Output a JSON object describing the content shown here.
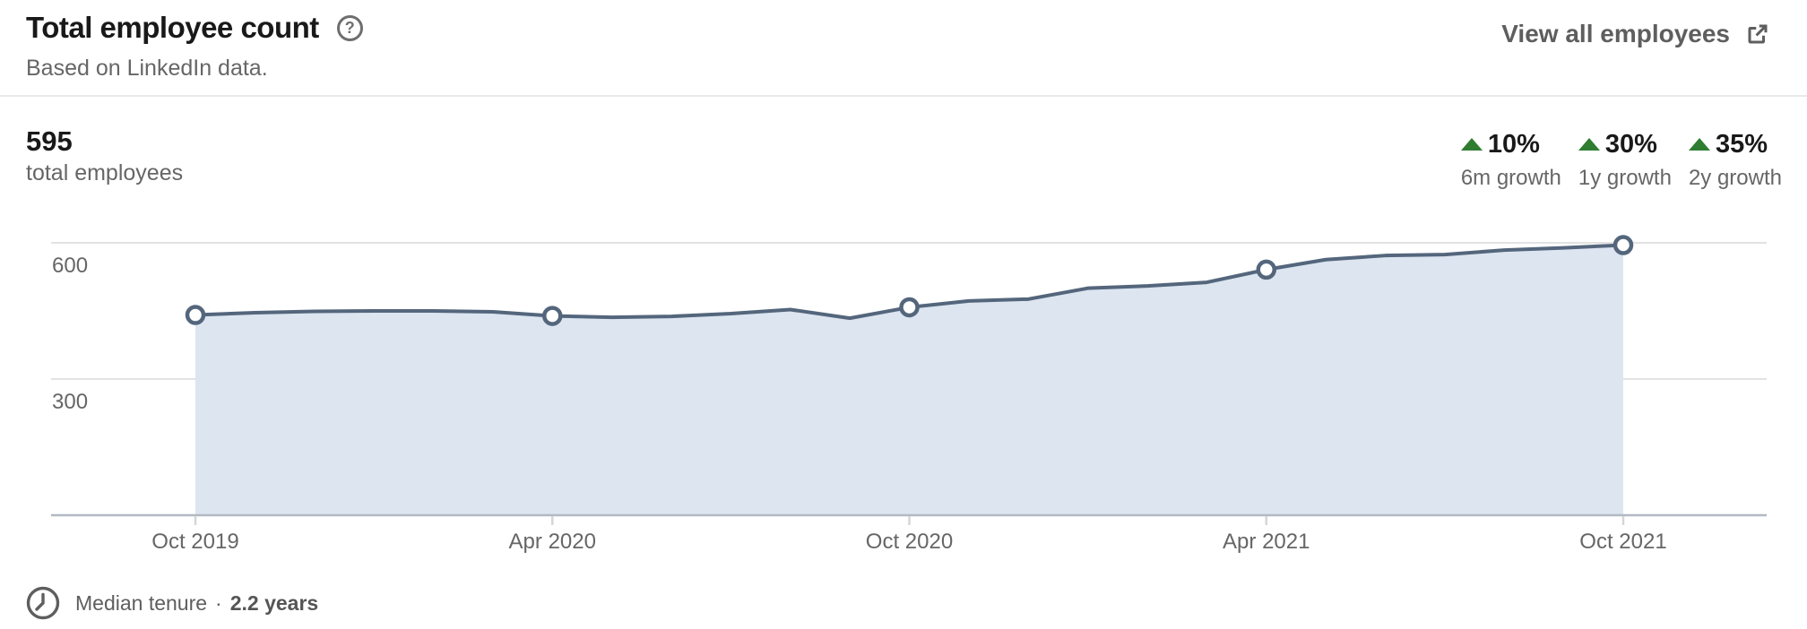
{
  "header": {
    "title": "Total employee count",
    "help_glyph": "?",
    "subtitle": "Based on LinkedIn data.",
    "link_label": "View all employees"
  },
  "stats": {
    "current_value": "595",
    "current_label": "total employees",
    "positive_color": "#2e7d31",
    "growth": [
      {
        "value": "10%",
        "label": "6m growth"
      },
      {
        "value": "30%",
        "label": "1y growth"
      },
      {
        "value": "35%",
        "label": "2y growth"
      }
    ]
  },
  "chart_data": {
    "type": "area",
    "title": "Total employee count",
    "series_name": "Total employees",
    "x": [
      "Oct 2019",
      "Nov 2019",
      "Dec 2019",
      "Jan 2020",
      "Feb 2020",
      "Mar 2020",
      "Apr 2020",
      "May 2020",
      "Jun 2020",
      "Jul 2020",
      "Aug 2020",
      "Sep 2020",
      "Oct 2020",
      "Nov 2020",
      "Dec 2020",
      "Jan 2021",
      "Feb 2021",
      "Mar 2021",
      "Apr 2021",
      "May 2021",
      "Jun 2021",
      "Jul 2021",
      "Aug 2021",
      "Sep 2021",
      "Oct 2021"
    ],
    "values": [
      441,
      446,
      449,
      450,
      450,
      448,
      439,
      436,
      438,
      444,
      453,
      434,
      458,
      472,
      476,
      500,
      505,
      513,
      541,
      563,
      572,
      574,
      584,
      589,
      595
    ],
    "marker_indices": [
      0,
      6,
      12,
      18,
      24
    ],
    "x_tick_labels": [
      "Oct 2019",
      "Apr 2020",
      "Oct 2020",
      "Apr 2021",
      "Oct 2021"
    ],
    "y_ticks": [
      300,
      600
    ],
    "ylim": [
      0,
      760
    ],
    "grid": true,
    "legend": false,
    "line_color": "#54667c",
    "fill_color": "#dce5f0",
    "marker_fill": "#ffffff",
    "gridline_color": "#e2e2e2",
    "axis_color": "#b2b9c2",
    "tick_color": "#d4d6d8",
    "axis_label_color": "#666666"
  },
  "footer": {
    "label": "Median tenure",
    "separator": "·",
    "value": "2.2 years"
  }
}
